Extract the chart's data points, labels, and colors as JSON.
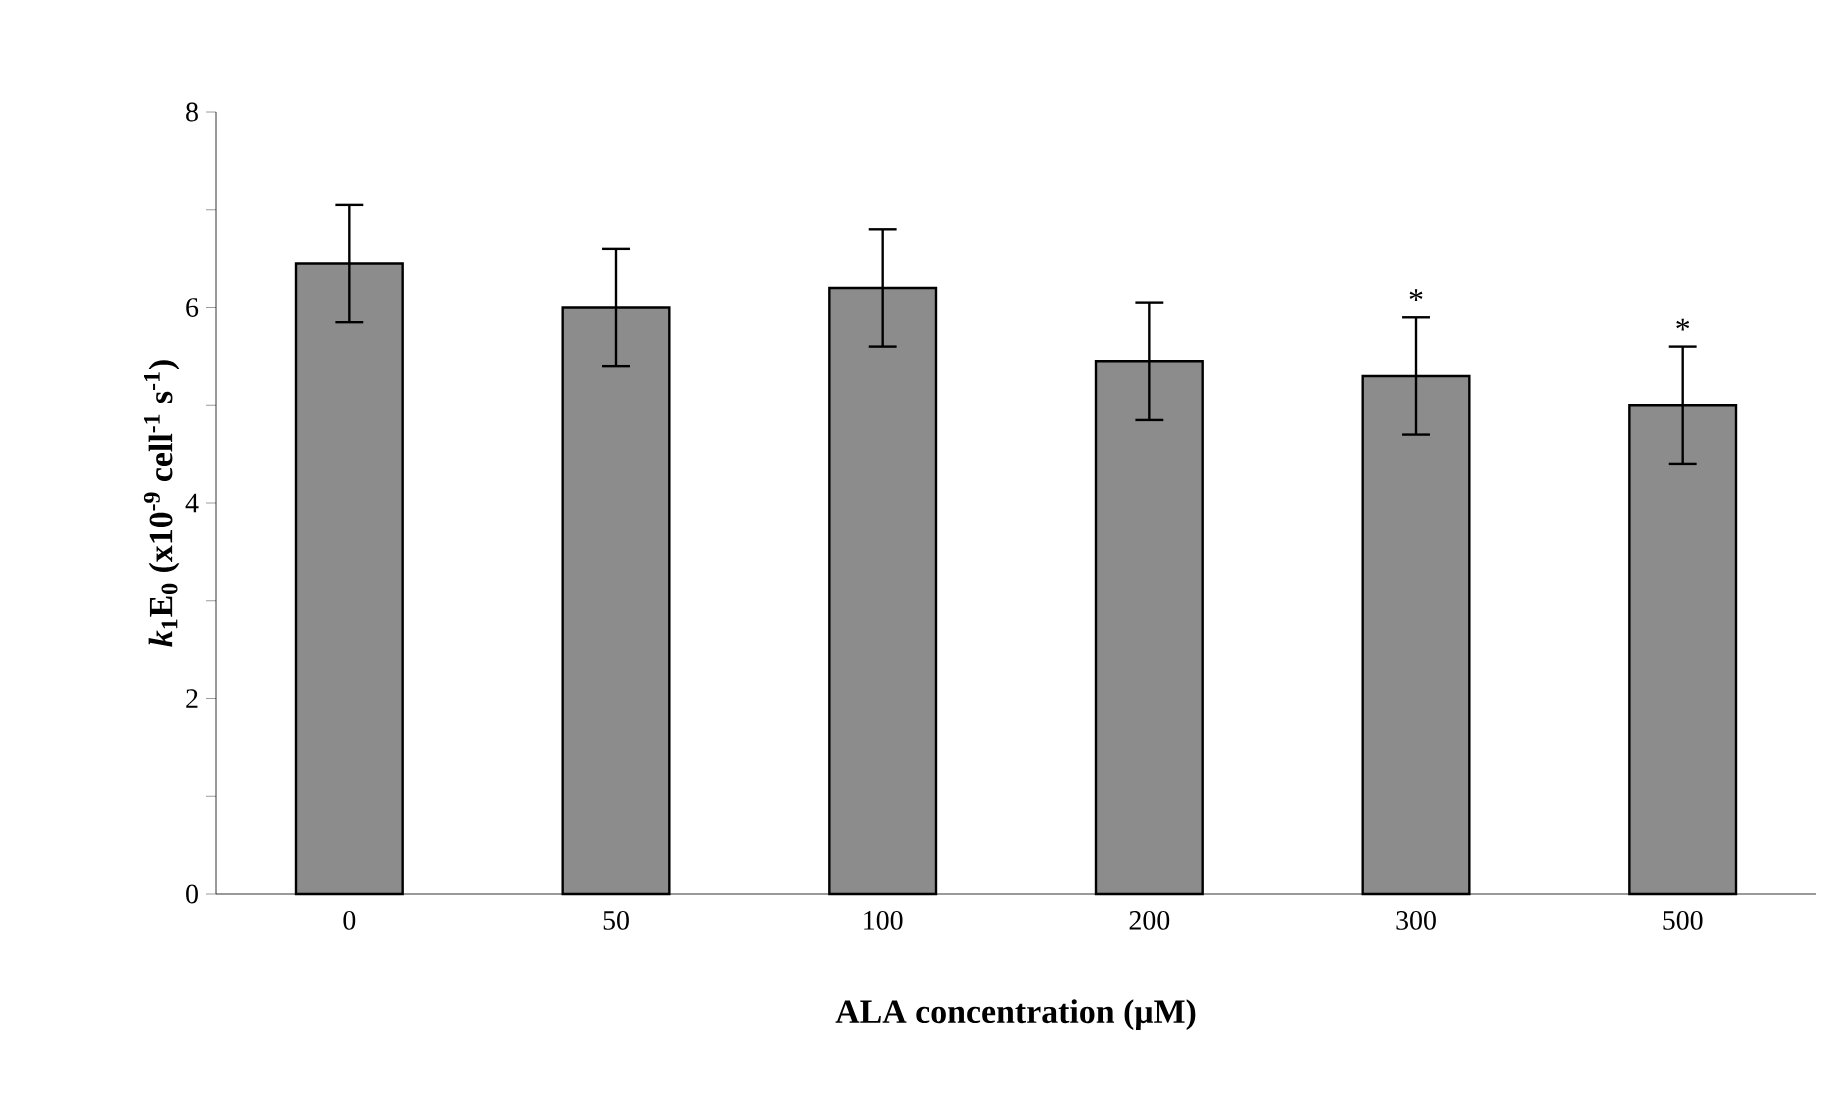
{
  "chart_data": {
    "type": "bar",
    "xlabel": "ALA concentration (μM)",
    "ylabel": "*k*$_{1}$E$_{0}$ (x10$^{-9}$ cell$^{-1}$ s$^{-1}$)",
    "categories": [
      "0",
      "50",
      "100",
      "200",
      "300",
      "500"
    ],
    "values": [
      6.45,
      6.0,
      6.2,
      5.45,
      5.3,
      5.0
    ],
    "errors": [
      0.6,
      0.6,
      0.6,
      0.6,
      0.6,
      0.6
    ],
    "color": "#8c8c8c",
    "ylim": [
      0,
      8
    ],
    "yticks": [
      0,
      {
        "value": 1,
        "label": null
      },
      2,
      {
        "value": 3,
        "label": null
      },
      4,
      {
        "value": 5,
        "label": null
      },
      6,
      {
        "value": 7,
        "label": null
      },
      8
    ],
    "annotations": [
      {
        "text": "*",
        "x": "300",
        "y": 5.3
      },
      {
        "text": "*",
        "x": "500",
        "y": 5.0
      }
    ],
    "grid": false
  }
}
